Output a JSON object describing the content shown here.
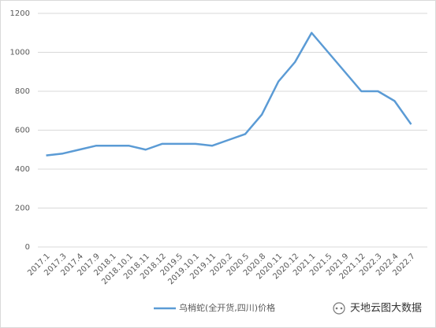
{
  "chart_data": {
    "type": "line",
    "categories": [
      "2017.1",
      "2017.3",
      "2017.4",
      "2017.9",
      "2018.1",
      "2018.10.1",
      "2018.11",
      "2018.12",
      "2019.5",
      "2019.10.1",
      "2019.11",
      "2020.2",
      "2020.5",
      "2020.8",
      "2020.11",
      "2020.12",
      "2021.1",
      "2021.5",
      "2021.9",
      "2021.12",
      "2022.3",
      "2022.4",
      "2022.7"
    ],
    "series": [
      {
        "name": "乌梢蛇(全开货,四川)价格",
        "color": "#5b9bd5",
        "values": [
          470,
          480,
          500,
          520,
          520,
          520,
          500,
          530,
          530,
          530,
          520,
          550,
          580,
          680,
          850,
          950,
          1100,
          1000,
          900,
          800,
          800,
          750,
          630
        ]
      }
    ],
    "ylim": [
      0,
      1200
    ],
    "yticks": [
      0,
      200,
      400,
      600,
      800,
      1000,
      1200
    ],
    "grid": true,
    "legend": "bottom"
  },
  "watermark": "天地云图大数据"
}
